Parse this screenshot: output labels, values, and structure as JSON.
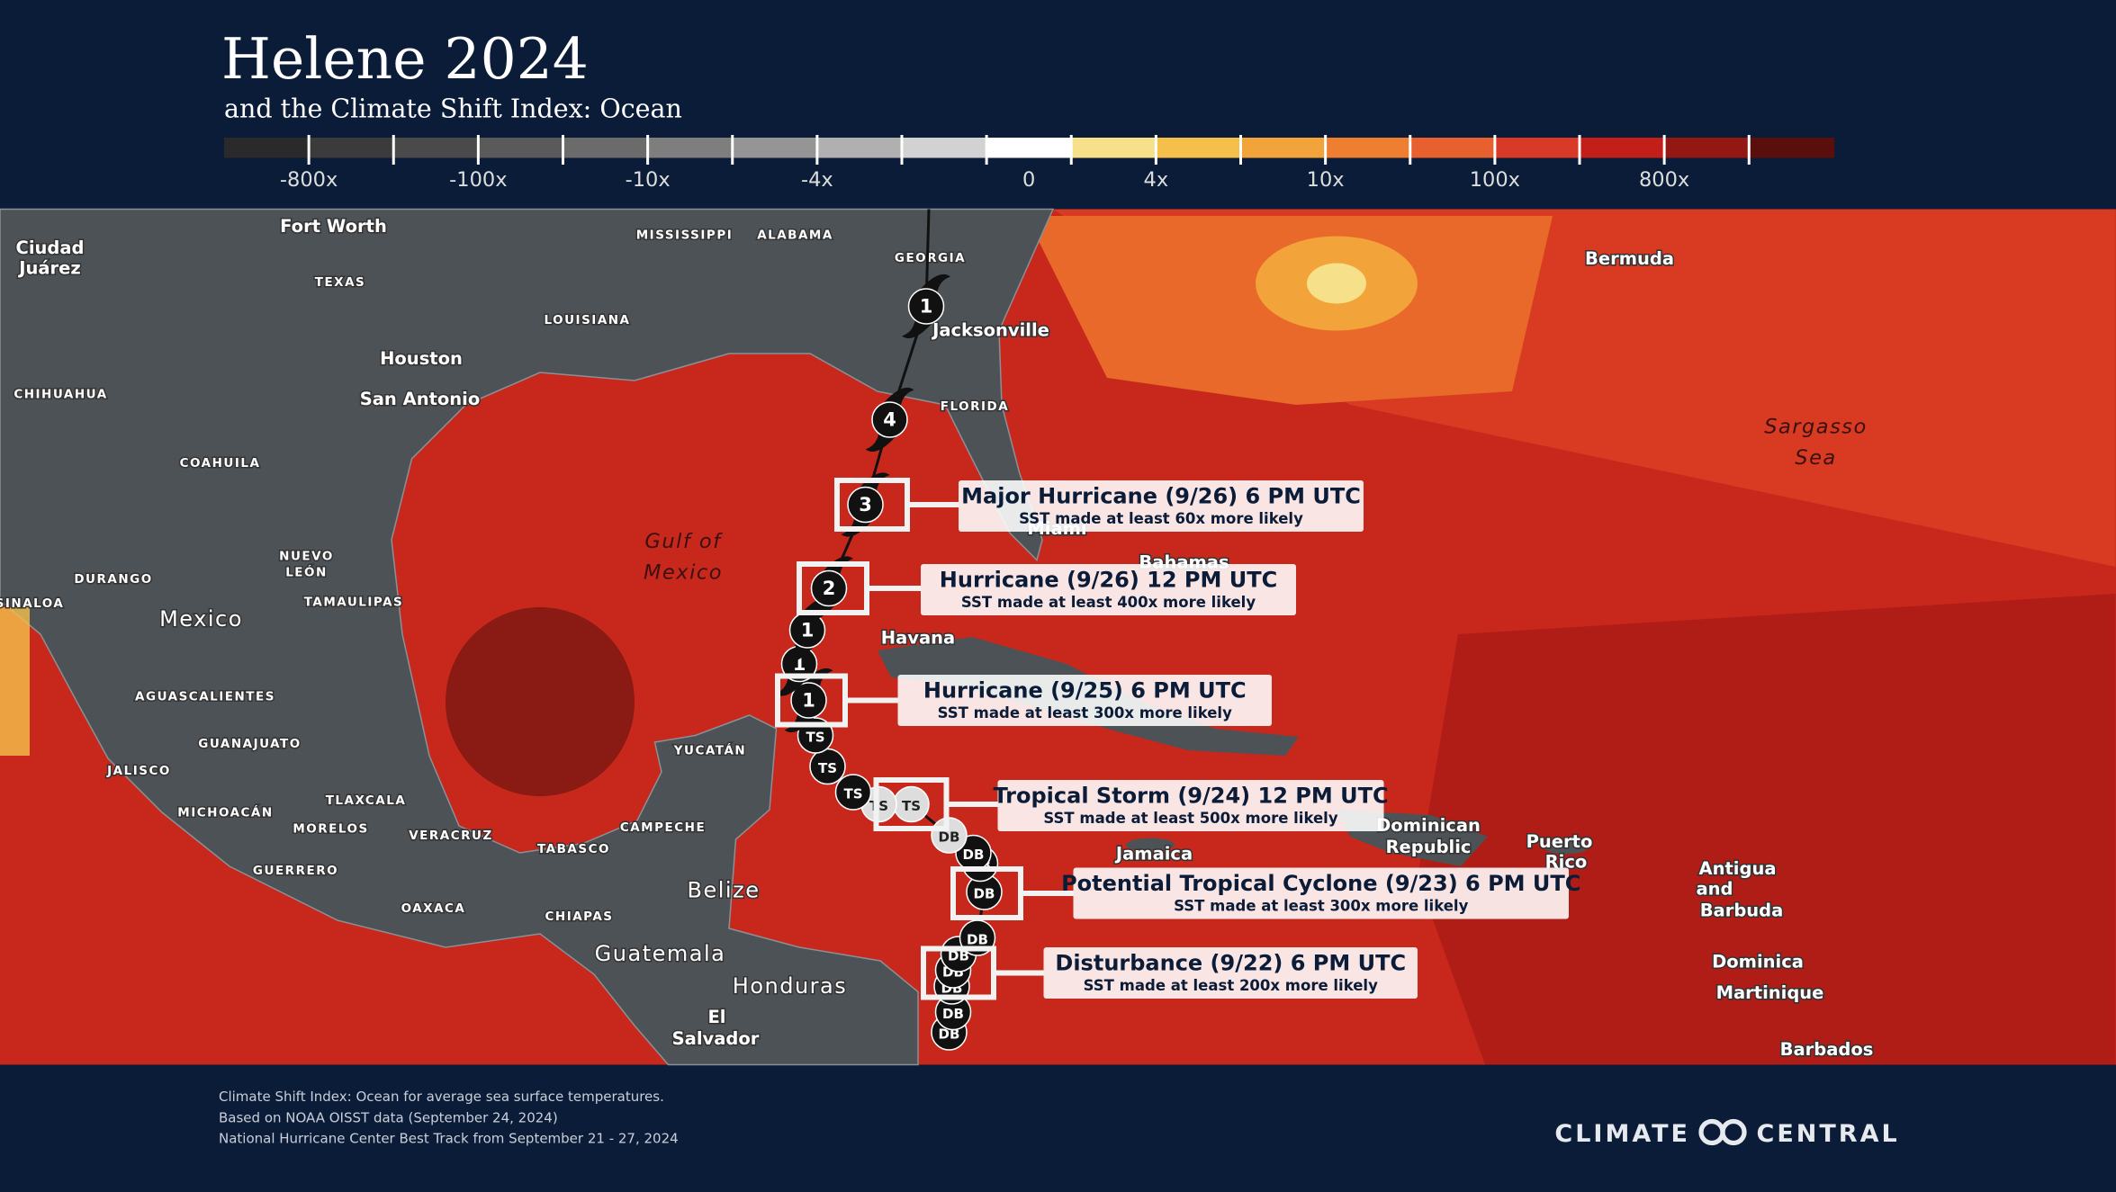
{
  "header": {
    "title": "Helene 2024",
    "subtitle": "and the Climate Shift Index: Ocean"
  },
  "legend": {
    "labels": [
      "-800x",
      "-100x",
      "-10x",
      "-4x",
      "0",
      "4x",
      "10x",
      "100x",
      "800x"
    ],
    "colors": [
      "#2a2a2a",
      "#3b3b3b",
      "#4a4a4a",
      "#5a5a5a",
      "#6b6b6b",
      "#7e7e7e",
      "#959595",
      "#b0b0b0",
      "#d2d2d2",
      "#ffffff",
      "#f7e08a",
      "#f5c04a",
      "#f2a33a",
      "#ee7e30",
      "#e9602f",
      "#d93a28",
      "#c21e1a",
      "#931813",
      "#5a0f0c"
    ]
  },
  "map_labels": [
    "Fort Worth",
    "TEXAS",
    "MISSISSIPPI",
    "ALABAMA",
    "GEORGIA",
    "Jacksonville",
    "LOUISIANA",
    "Houston",
    "San Antonio",
    "Ciudad",
    "Juárez",
    "CHIHUAHUA",
    "COAHUILA",
    "DURANGO",
    "NUEVO",
    "LEÓN",
    "TAMAULIPAS",
    "SINALOA",
    "Mexico",
    "Gulf of",
    "Mexico",
    "FLORIDA",
    "Miami",
    "Bahamas",
    "Havana",
    "YUCATÁN",
    "AGUASCALIENTES",
    "GUANAJUATO",
    "JALISCO",
    "MICHOACÁN",
    "TLAXCALA",
    "MORELOS",
    "VERACRUZ",
    "TABASCO",
    "CAMPECHE",
    "GUERRERO",
    "OAXACA",
    "CHIAPAS",
    "Belize",
    "Guatemala",
    "Honduras",
    "El",
    "Salvador",
    "Jamaica",
    "Dominican",
    "Republic",
    "Puerto",
    "Rico",
    "Antigua",
    "and",
    "Barbuda",
    "Dominica",
    "Martinique",
    "Barbados",
    "Bermuda",
    "Sargasso",
    "Sea"
  ],
  "track": [
    "1",
    "4",
    "3",
    "2",
    "1",
    "1",
    "1",
    "TS",
    "TS",
    "TS",
    "TS",
    "TS",
    "DB",
    "DB",
    "DB",
    "DB",
    "DB",
    "DB",
    "DB",
    "DB",
    "DB",
    "DB"
  ],
  "callouts": [
    {
      "title": "Major Hurricane (9/26) 6 PM UTC",
      "note": "SST made at least 60x more likely"
    },
    {
      "title": "Hurricane (9/26) 12 PM UTC",
      "note": "SST made at least 400x more likely"
    },
    {
      "title": "Hurricane (9/25) 6 PM UTC",
      "note": "SST made at least 300x more likely"
    },
    {
      "title": "Tropical Storm (9/24) 12 PM UTC",
      "note": "SST made at least 500x more likely"
    },
    {
      "title": "Potential Tropical Cyclone (9/23) 6 PM UTC",
      "note": "SST made at least 300x more likely"
    },
    {
      "title": "Disturbance (9/22) 6 PM UTC",
      "note": "SST made at least 200x more likely"
    }
  ],
  "footer": {
    "notes": [
      "Climate Shift Index: Ocean for average sea surface temperatures.",
      "Based on NOAA OISST data (September 24, 2024)",
      "National Hurricane Center Best Track from September 21 - 27, 2024"
    ],
    "logo": {
      "left": "CLIMATE",
      "right": "CENTRAL"
    }
  }
}
